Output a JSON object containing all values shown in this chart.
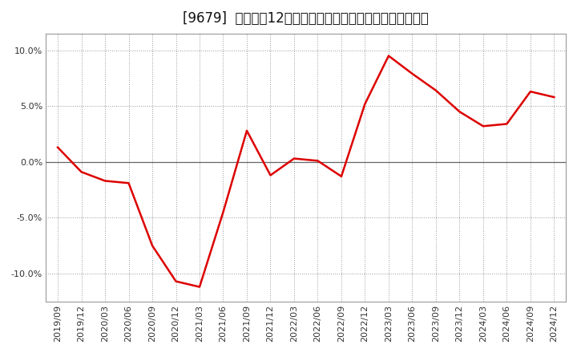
{
  "title": "[9679]  売上高の12か月移動合計の対前年同期増減率の推移",
  "x_labels": [
    "2019/09",
    "2019/12",
    "2020/03",
    "2020/06",
    "2020/09",
    "2020/12",
    "2021/03",
    "2021/06",
    "2021/09",
    "2021/12",
    "2022/03",
    "2022/06",
    "2022/09",
    "2022/12",
    "2023/03",
    "2023/06",
    "2023/09",
    "2023/12",
    "2024/03",
    "2024/06",
    "2024/09",
    "2024/12"
  ],
  "values": [
    1.3,
    -0.9,
    -1.7,
    -1.9,
    -7.5,
    -10.7,
    -11.2,
    -4.5,
    2.8,
    -1.2,
    0.3,
    0.1,
    -1.3,
    5.2,
    9.5,
    7.9,
    6.4,
    4.5,
    3.2,
    3.4,
    6.3,
    5.8
  ],
  "line_color": "#dd0000",
  "line_width": 1.8,
  "ylim": [
    -12.5,
    11.5
  ],
  "yticks": [
    -10.0,
    -5.0,
    0.0,
    5.0,
    10.0
  ],
  "ytick_labels": [
    "-10.0%",
    "-5.0%",
    "0.0%",
    "5.0%",
    "10.0%"
  ],
  "bg_color": "#ffffff",
  "plot_bg_color": "#ffffff",
  "grid_color": "#999999",
  "zero_line_color": "#666666",
  "title_fontsize": 12,
  "tick_fontsize": 8,
  "spine_color": "#999999"
}
